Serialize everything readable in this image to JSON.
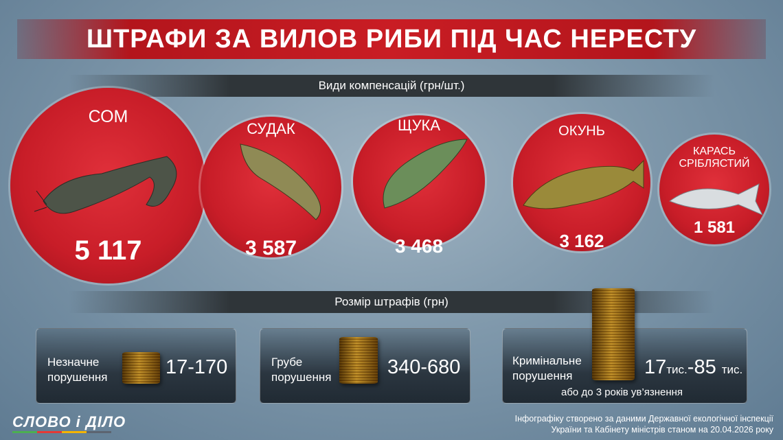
{
  "title": "ШТРАФИ ЗА ВИЛОВ РИБИ ПІД ЧАС НЕРЕСТУ",
  "compensation_heading": "Види компенсацій (грн/шт.)",
  "fish": [
    {
      "name": "СОМ",
      "value": "5 117"
    },
    {
      "name": "СУДАК",
      "value": "3 587"
    },
    {
      "name": "ЩУКА",
      "value": "3 468"
    },
    {
      "name": "ОКУНЬ",
      "value": "3 162"
    },
    {
      "name": "КАРАСЬ СРІБЛЯСТИЙ",
      "value": "1 581"
    }
  ],
  "fines_heading": "Розмір штрафів (грн)",
  "fines": [
    {
      "label_line1": "Незначне",
      "label_line2": "порушення",
      "value": "17-170"
    },
    {
      "label_line1": "Грубе",
      "label_line2": "порушення",
      "value": "340-680"
    },
    {
      "label_line1": "Кримінальне",
      "label_line2": "порушення",
      "value_a": "17",
      "unit_a": "тис.",
      "value_b": "-85",
      "unit_b": "тис.",
      "note": "або до 3 років ув’язнення"
    }
  ],
  "logo": "СЛОВО і ДІЛО",
  "footer_line1": "Інфографіку створено за даними Державної екологічної інспекції",
  "footer_line2": "України та Кабінету міністрів станом на 20.04.2026 року",
  "colors": {
    "accent_red": "#c81d28",
    "background": "#7f98ab"
  }
}
